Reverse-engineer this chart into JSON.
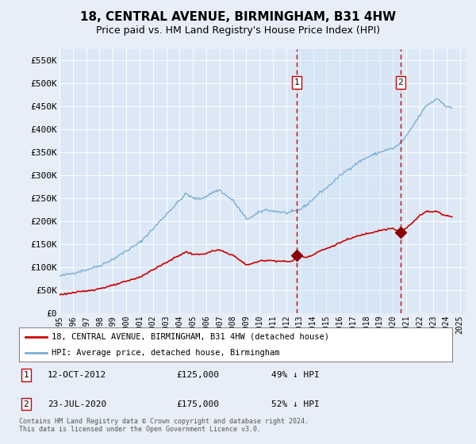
{
  "title": "18, CENTRAL AVENUE, BIRMINGHAM, B31 4HW",
  "subtitle": "Price paid vs. HM Land Registry's House Price Index (HPI)",
  "title_fontsize": 11,
  "subtitle_fontsize": 9,
  "background_color": "#e8eef8",
  "plot_bg_color": "#dce8f5",
  "ylim": [
    0,
    575000
  ],
  "yticks": [
    0,
    50000,
    100000,
    150000,
    200000,
    250000,
    300000,
    350000,
    400000,
    450000,
    500000,
    550000
  ],
  "ytick_labels": [
    "£0",
    "£50K",
    "£100K",
    "£150K",
    "£200K",
    "£250K",
    "£300K",
    "£350K",
    "£400K",
    "£450K",
    "£500K",
    "£550K"
  ],
  "xlim_min": 1995.0,
  "xlim_max": 2025.5,
  "xlabel_years": [
    1995,
    1996,
    1997,
    1998,
    1999,
    2000,
    2001,
    2002,
    2003,
    2004,
    2005,
    2006,
    2007,
    2008,
    2009,
    2010,
    2011,
    2012,
    2013,
    2014,
    2015,
    2016,
    2017,
    2018,
    2019,
    2020,
    2021,
    2022,
    2023,
    2024,
    2025
  ],
  "hpi_color": "#7aadd4",
  "red_line_color": "#cc0000",
  "vline_color": "#cc0000",
  "shade_color": "#d0e4f7",
  "marker_color": "#8b0000",
  "sale1_x": 2012.79,
  "sale1_y": 125000,
  "sale2_x": 2020.55,
  "sale2_y": 175000,
  "sale1_label": "1",
  "sale2_label": "2",
  "sale1_date": "12-OCT-2012",
  "sale1_price": "£125,000",
  "sale1_hpi": "49% ↓ HPI",
  "sale2_date": "23-JUL-2020",
  "sale2_price": "£175,000",
  "sale2_hpi": "52% ↓ HPI",
  "legend_line1": "18, CENTRAL AVENUE, BIRMINGHAM, B31 4HW (detached house)",
  "legend_line2": "HPI: Average price, detached house, Birmingham",
  "footer": "Contains HM Land Registry data © Crown copyright and database right 2024.\nThis data is licensed under the Open Government Licence v3.0.",
  "grid_color": "#ffffff"
}
